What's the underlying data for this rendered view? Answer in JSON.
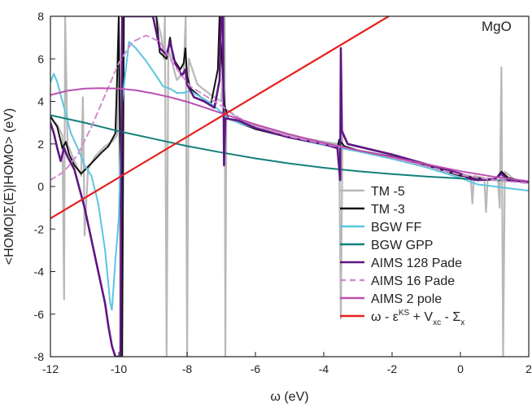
{
  "chart_data": {
    "type": "line",
    "annotation": "MgO",
    "xlabel": "ω (eV)",
    "ylabel": "<HOMO|Σ(E)|HOMO> (eV)",
    "xlim": [
      -12,
      2
    ],
    "ylim": [
      -8,
      8
    ],
    "xticks": [
      "-12",
      "-10",
      "-8",
      "-6",
      "-4",
      "-2",
      "0",
      "2"
    ],
    "yticks": [
      "-8",
      "-6",
      "-4",
      "-2",
      "0",
      "2",
      "4",
      "6",
      "8"
    ],
    "grid": false,
    "legend_position": "bottom-right",
    "legend_last": {
      "a": "ω - ε",
      "b": "KS",
      "c": " + V",
      "d": "xc",
      "e": " - Σ",
      "f": "x"
    },
    "series": [
      {
        "name": "TM -5",
        "color": "#b8b8b8",
        "dash": "none",
        "width": 2.2,
        "points": [
          [
            -12,
            3.2
          ],
          [
            -11.8,
            2.9
          ],
          [
            -11.65,
            2.4
          ],
          [
            -11.6,
            -5.3
          ],
          [
            -11.57,
            8
          ],
          [
            -11.5,
            2.0
          ],
          [
            -11.3,
            1.2
          ],
          [
            -11.1,
            0.5
          ],
          [
            -11.05,
            4.2
          ],
          [
            -11.0,
            -2.3
          ],
          [
            -10.9,
            0.8
          ],
          [
            -10.7,
            1.4
          ],
          [
            -10.4,
            1.9
          ],
          [
            -10.2,
            2.1
          ],
          [
            -10.05,
            2.4
          ],
          [
            -10.0,
            8
          ],
          [
            -9.95,
            -8
          ],
          [
            -9.9,
            8
          ],
          [
            -9.6,
            8
          ],
          [
            -9.2,
            8
          ],
          [
            -8.9,
            8
          ],
          [
            -8.75,
            7
          ],
          [
            -8.68,
            6.0
          ],
          [
            -8.65,
            8
          ],
          [
            -8.6,
            -8
          ],
          [
            -8.55,
            6.5
          ],
          [
            -8.3,
            5.0
          ],
          [
            -8.1,
            5.4
          ],
          [
            -8.04,
            8
          ],
          [
            -8.0,
            -8
          ],
          [
            -7.95,
            6.0
          ],
          [
            -7.7,
            4.8
          ],
          [
            -7.3,
            4.3
          ],
          [
            -7.0,
            4.0
          ],
          [
            -6.9,
            8
          ],
          [
            -6.88,
            -8
          ],
          [
            -6.85,
            3.6
          ],
          [
            -6.5,
            3.2
          ],
          [
            -6,
            2.85
          ],
          [
            -5,
            2.4
          ],
          [
            -4,
            2.1
          ],
          [
            -3.55,
            2.0
          ],
          [
            -3.5,
            -6.2
          ],
          [
            -3.45,
            2.6
          ],
          [
            -3.3,
            2.0
          ],
          [
            -2,
            1.5
          ],
          [
            -1,
            1.0
          ],
          [
            0,
            0.6
          ],
          [
            0.3,
            0.5
          ],
          [
            0.35,
            -0.8
          ],
          [
            0.4,
            0.5
          ],
          [
            0.7,
            0.4
          ],
          [
            0.75,
            -1.2
          ],
          [
            0.8,
            0.4
          ],
          [
            1.1,
            0.3
          ],
          [
            1.15,
            -1.0
          ],
          [
            1.2,
            5.6
          ],
          [
            1.25,
            -8
          ],
          [
            1.3,
            0.7
          ],
          [
            1.6,
            0.3
          ],
          [
            2,
            0.2
          ]
        ]
      },
      {
        "name": "TM -3",
        "color": "#111111",
        "dash": "none",
        "width": 2.0,
        "points": [
          [
            -12,
            3.3
          ],
          [
            -11.8,
            2.8
          ],
          [
            -11.65,
            1.8
          ],
          [
            -11.55,
            2.1
          ],
          [
            -11.45,
            1.5
          ],
          [
            -11.3,
            1.0
          ],
          [
            -11.1,
            0.6
          ],
          [
            -10.8,
            1.1
          ],
          [
            -10.5,
            1.6
          ],
          [
            -10.3,
            1.9
          ],
          [
            -10.1,
            2.5
          ],
          [
            -10.05,
            5
          ],
          [
            -10.0,
            8
          ],
          [
            -9.9,
            -8
          ],
          [
            -9.85,
            8
          ],
          [
            -9.2,
            8
          ],
          [
            -8.9,
            8
          ],
          [
            -8.8,
            6.3
          ],
          [
            -8.6,
            6.0
          ],
          [
            -8.5,
            7.0
          ],
          [
            -8.4,
            6.0
          ],
          [
            -8.2,
            5.5
          ],
          [
            -8.1,
            5.8
          ],
          [
            -8.05,
            6.5
          ],
          [
            -8.0,
            5.2
          ],
          [
            -7.9,
            4.6
          ],
          [
            -7.6,
            4.2
          ],
          [
            -7.3,
            3.9
          ],
          [
            -7.1,
            5.5
          ],
          [
            -7.05,
            8
          ],
          [
            -7.0,
            6.5
          ],
          [
            -6.9,
            3.8
          ],
          [
            -6.8,
            3.2
          ],
          [
            -6.5,
            3.0
          ],
          [
            -6,
            2.7
          ],
          [
            -5,
            2.3
          ],
          [
            -4,
            2.0
          ],
          [
            -3.7,
            1.9
          ],
          [
            -3.6,
            1.8
          ],
          [
            -3.55,
            2.2
          ],
          [
            -3.4,
            1.9
          ],
          [
            -3,
            1.7
          ],
          [
            -2,
            1.4
          ],
          [
            -1,
            1.0
          ],
          [
            0,
            0.5
          ],
          [
            1,
            0.3
          ],
          [
            1.2,
            0.7
          ],
          [
            1.4,
            0.4
          ],
          [
            2,
            0.2
          ]
        ]
      },
      {
        "name": "BGW FF",
        "color": "#5bc6e0",
        "dash": "none",
        "width": 2.0,
        "points": [
          [
            -12,
            4.9
          ],
          [
            -11.9,
            5.3
          ],
          [
            -11.8,
            4.9
          ],
          [
            -11.6,
            3.7
          ],
          [
            -11.4,
            2.5
          ],
          [
            -11.2,
            1.8
          ],
          [
            -11.0,
            1.0
          ],
          [
            -10.8,
            0.5
          ],
          [
            -10.6,
            -0.8
          ],
          [
            -10.4,
            -3.0
          ],
          [
            -10.25,
            -5.5
          ],
          [
            -10.2,
            -5.8
          ],
          [
            -10.1,
            -3.5
          ],
          [
            -10.0,
            -1.5
          ],
          [
            -9.9,
            4.0
          ],
          [
            -9.7,
            6.8
          ],
          [
            -9.5,
            6.5
          ],
          [
            -9.2,
            5.9
          ],
          [
            -8.9,
            5.2
          ],
          [
            -8.7,
            4.7
          ],
          [
            -8.5,
            4.6
          ],
          [
            -8.3,
            4.4
          ],
          [
            -8.1,
            4.4
          ],
          [
            -7.9,
            4.5
          ],
          [
            -7.6,
            4.2
          ],
          [
            -7.3,
            3.9
          ],
          [
            -7.0,
            3.5
          ],
          [
            -6.8,
            3.2
          ],
          [
            -6.5,
            3.0
          ],
          [
            -6,
            2.75
          ],
          [
            -5,
            2.3
          ],
          [
            -4,
            1.95
          ],
          [
            -3.5,
            1.8
          ],
          [
            -3,
            1.65
          ],
          [
            -2,
            1.3
          ],
          [
            -1,
            0.9
          ],
          [
            0,
            0.4
          ],
          [
            0.5,
            0.1
          ],
          [
            1,
            0.0
          ],
          [
            1.5,
            -0.1
          ],
          [
            2,
            -0.2
          ]
        ]
      },
      {
        "name": "BGW GPP",
        "color": "#12807a",
        "dash": "none",
        "width": 2.0,
        "points": [
          [
            -12,
            3.35
          ],
          [
            -11,
            3.0
          ],
          [
            -10,
            2.6
          ],
          [
            -9,
            2.25
          ],
          [
            -8,
            1.9
          ],
          [
            -7,
            1.6
          ],
          [
            -6,
            1.32
          ],
          [
            -5,
            1.08
          ],
          [
            -4,
            0.88
          ],
          [
            -3,
            0.72
          ],
          [
            -2,
            0.58
          ],
          [
            -1,
            0.47
          ],
          [
            0,
            0.38
          ],
          [
            1,
            0.3
          ],
          [
            2,
            0.24
          ]
        ]
      },
      {
        "name": "AIMS 128 Pade",
        "color": "#5e1682",
        "dash": "none",
        "width": 2.6,
        "points": [
          [
            -12,
            3.0
          ],
          [
            -11.9,
            2.5
          ],
          [
            -11.8,
            1.8
          ],
          [
            -11.7,
            1.2
          ],
          [
            -11.6,
            1.8
          ],
          [
            -11.5,
            1.4
          ],
          [
            -11.3,
            0.8
          ],
          [
            -11.0,
            -1.0
          ],
          [
            -10.8,
            -2.5
          ],
          [
            -10.6,
            -4.0
          ],
          [
            -10.4,
            -5.5
          ],
          [
            -10.3,
            -6.6
          ],
          [
            -10.2,
            -7.5
          ],
          [
            -10.1,
            -8.0
          ],
          [
            -9.95,
            -8
          ],
          [
            -9.9,
            8
          ],
          [
            -9.2,
            8
          ],
          [
            -9.0,
            8
          ],
          [
            -8.8,
            6.5
          ],
          [
            -8.6,
            6.2
          ],
          [
            -8.5,
            6.8
          ],
          [
            -8.35,
            5.8
          ],
          [
            -8.15,
            5.2
          ],
          [
            -8.05,
            5.5
          ],
          [
            -8.0,
            4.8
          ],
          [
            -7.8,
            4.2
          ],
          [
            -7.5,
            4.0
          ],
          [
            -7.2,
            3.7
          ],
          [
            -7.05,
            5
          ],
          [
            -7.0,
            8
          ],
          [
            -6.95,
            8
          ],
          [
            -6.92,
            1.0
          ],
          [
            -6.88,
            3.2
          ],
          [
            -6.5,
            3.1
          ],
          [
            -6,
            2.75
          ],
          [
            -5,
            2.3
          ],
          [
            -4,
            2.0
          ],
          [
            -3.6,
            1.8
          ],
          [
            -3.52,
            0.3
          ],
          [
            -3.5,
            6.5
          ],
          [
            -3.47,
            2.6
          ],
          [
            -3.3,
            2.0
          ],
          [
            -2,
            1.5
          ],
          [
            -1,
            1.05
          ],
          [
            0,
            0.6
          ],
          [
            0.3,
            0.35
          ],
          [
            0.5,
            0.3
          ],
          [
            1,
            0.35
          ],
          [
            1.2,
            0.6
          ],
          [
            1.4,
            0.3
          ],
          [
            2,
            0.2
          ]
        ]
      },
      {
        "name": "AIMS 16 Pade",
        "color": "#d48bcd",
        "dash": "7,5",
        "width": 2.0,
        "points": [
          [
            -12,
            0.3
          ],
          [
            -11.6,
            0.7
          ],
          [
            -11.2,
            1.5
          ],
          [
            -10.8,
            2.8
          ],
          [
            -10.4,
            4.3
          ],
          [
            -10.0,
            5.8
          ],
          [
            -9.6,
            6.8
          ],
          [
            -9.2,
            7.1
          ],
          [
            -8.8,
            6.8
          ],
          [
            -8.5,
            6.0
          ],
          [
            -8.2,
            5.3
          ],
          [
            -7.9,
            4.7
          ],
          [
            -7.5,
            4.3
          ],
          [
            -7.0,
            3.8
          ],
          [
            -6.5,
            3.25
          ],
          [
            -6,
            2.85
          ],
          [
            -5,
            2.35
          ],
          [
            -4,
            2.0
          ],
          [
            -3,
            1.7
          ],
          [
            -2,
            1.35
          ],
          [
            -1,
            0.95
          ],
          [
            0,
            0.55
          ],
          [
            1,
            0.3
          ],
          [
            2,
            0.15
          ]
        ]
      },
      {
        "name": "AIMS 2 pole",
        "color": "#bb4fb1",
        "dash": "none",
        "width": 2.0,
        "points": [
          [
            -12,
            4.3
          ],
          [
            -11.5,
            4.5
          ],
          [
            -11,
            4.6
          ],
          [
            -10.5,
            4.62
          ],
          [
            -10,
            4.6
          ],
          [
            -9.5,
            4.52
          ],
          [
            -9,
            4.38
          ],
          [
            -8.5,
            4.2
          ],
          [
            -8,
            3.98
          ],
          [
            -7.5,
            3.72
          ],
          [
            -7,
            3.45
          ],
          [
            -6.5,
            3.18
          ],
          [
            -6,
            2.92
          ],
          [
            -5,
            2.45
          ],
          [
            -4,
            2.05
          ],
          [
            -3,
            1.7
          ],
          [
            -2,
            1.38
          ],
          [
            -1,
            1.05
          ],
          [
            0,
            0.72
          ],
          [
            1,
            0.45
          ],
          [
            2,
            0.25
          ]
        ]
      },
      {
        "name": "ω - εKS + Vxc - Σx",
        "color": "#e8201e",
        "dash": "none",
        "width": 2.2,
        "points": [
          [
            -12,
            -1.5
          ],
          [
            -2.1,
            8
          ]
        ]
      }
    ]
  }
}
